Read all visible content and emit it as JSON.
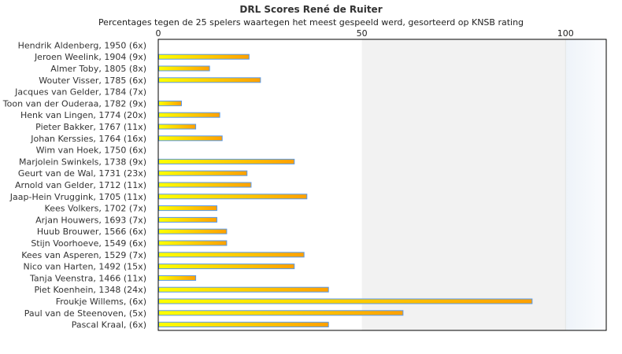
{
  "chart_data": {
    "type": "bar",
    "orientation": "horizontal",
    "title": "DRL Scores René de Ruiter",
    "subtitle": "Percentages tegen de 25 spelers waartegen het meest gespeeld werd, gesorteerd op KNSB rating",
    "xlim": [
      0,
      110
    ],
    "xticks": [
      0,
      50,
      100
    ],
    "xtick_labels": [
      "0",
      "50",
      "100"
    ],
    "colors": {
      "bar_start": "#ffff00",
      "bar_end": "#ffa000",
      "bar_border": "#5599ee",
      "band": "#f2f2f2",
      "band2": "#f4f8fc"
    },
    "categories": [
      "Hendrik Aldenberg, 1950 (6x)",
      "Jeroen Weelink, 1904 (9x)",
      "Almer Toby, 1805 (8x)",
      "Wouter Visser, 1785 (6x)",
      "Jacques van Gelder, 1784 (7x)",
      "Toon van der Ouderaa, 1782 (9x)",
      "Henk van Lingen, 1774 (20x)",
      "Pieter Bakker, 1767 (11x)",
      "Johan Kerssies, 1764 (16x)",
      "Wim van Hoek, 1750 (6x)",
      "Marjolein Swinkels, 1738 (9x)",
      "Geurt van de Wal, 1731 (23x)",
      "Arnold van Gelder, 1712 (11x)",
      "Jaap-Hein Vruggink, 1705 (11x)",
      "Kees Volkers, 1702 (7x)",
      "Arjan Houwers, 1693 (7x)",
      "Huub Brouwer, 1566 (6x)",
      "Stijn Voorhoeve, 1549 (6x)",
      "Kees van Asperen, 1529 (7x)",
      "Nico van Harten, 1492 (15x)",
      "Tanja Veenstra, 1466 (11x)",
      "Piet Koenhein, 1348 (24x)",
      "Froukje Willems,  (6x)",
      "Paul van de Steenoven,  (5x)",
      "Pascal Kraal,  (6x)"
    ],
    "values": [
      0,
      22.2,
      12.5,
      25,
      0,
      5.6,
      15,
      9.1,
      15.6,
      0,
      33.3,
      21.7,
      22.7,
      36.4,
      14.3,
      14.3,
      16.7,
      16.7,
      35.7,
      33.3,
      9.1,
      41.7,
      91.7,
      60,
      41.7
    ]
  }
}
